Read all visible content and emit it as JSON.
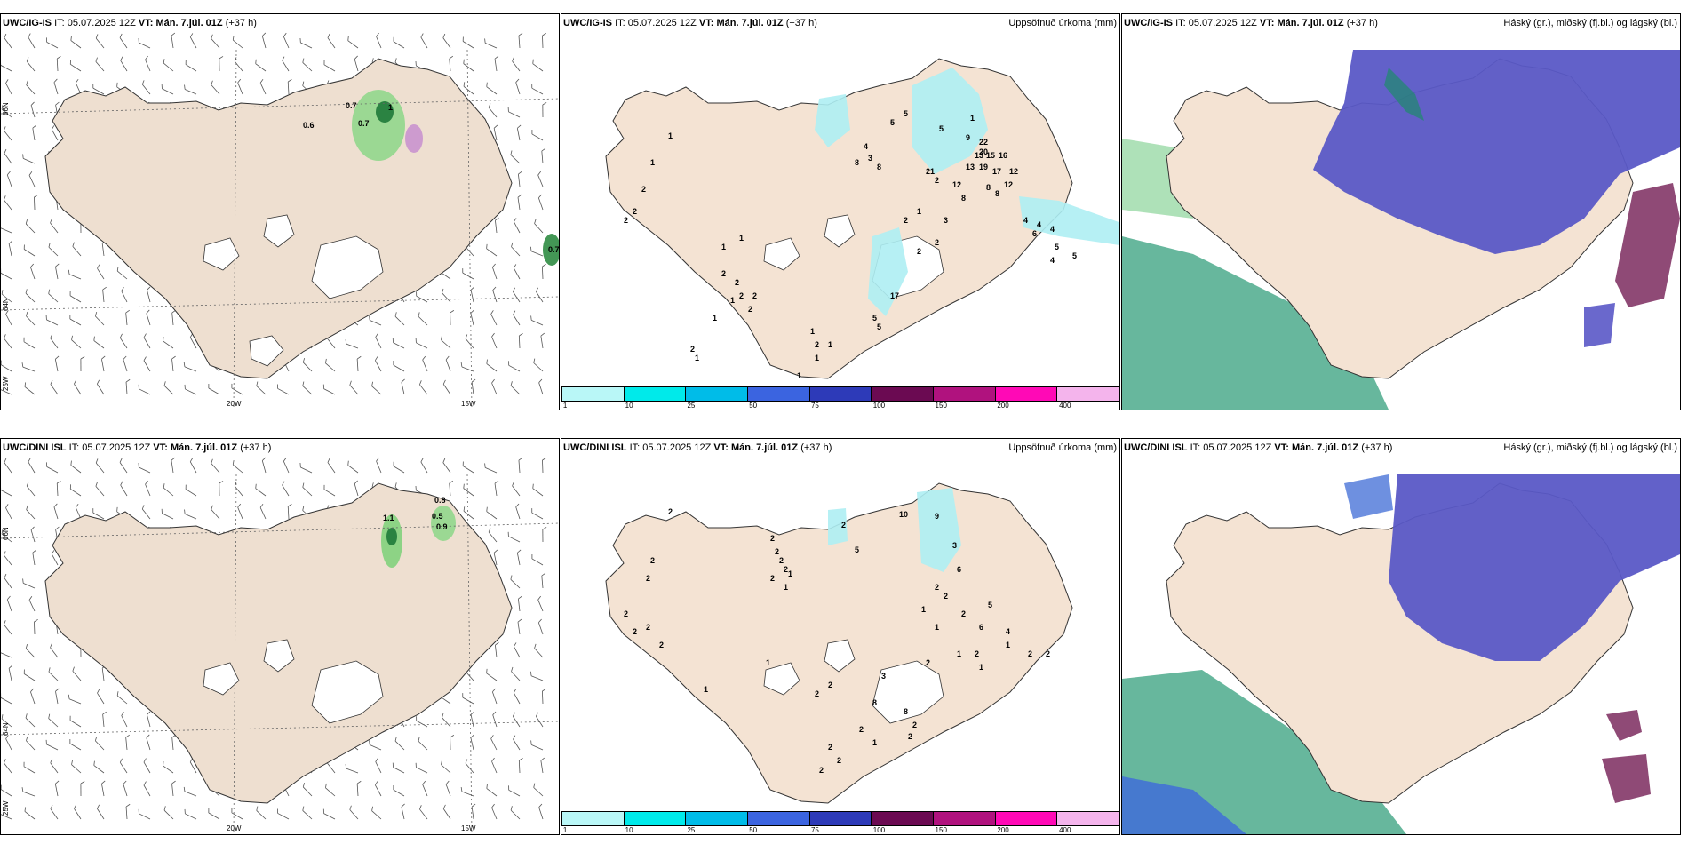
{
  "rows": [
    {
      "model": "UWC/IG-IS",
      "maps": [
        {
          "values": [
            "0.6",
            "0.7",
            "0.7",
            "0.7",
            "1"
          ]
        },
        {
          "values": [
            "1",
            "1",
            "2",
            "2",
            "2",
            "1",
            "1",
            "2",
            "2",
            "2",
            "2",
            "1",
            "2",
            "1",
            "2",
            "1",
            "1",
            "2",
            "5",
            "5",
            "4",
            "3",
            "8",
            "8",
            "5",
            "5",
            "9",
            "22",
            "20",
            "13",
            "15",
            "19",
            "16",
            "13",
            "17",
            "12",
            "12",
            "8",
            "8",
            "8",
            "12",
            "1",
            "1",
            "2",
            "21",
            "2",
            "3",
            "2",
            "2",
            "17",
            "5",
            "1",
            "1",
            "1",
            "4",
            "4",
            "6",
            "4",
            "5",
            "4",
            "5"
          ]
        },
        {}
      ]
    },
    {
      "model": "UWC/DINI ISL",
      "maps": [
        {
          "values": [
            "0.8",
            "1.1",
            "0.5",
            "0.9"
          ]
        },
        {
          "values": [
            "2",
            "2",
            "2",
            "2",
            "2",
            "2",
            "2",
            "1",
            "1",
            "2",
            "2",
            "2",
            "2",
            "2",
            "2",
            "2",
            "1",
            "1",
            "2",
            "5",
            "10",
            "9",
            "3",
            "6",
            "2",
            "1",
            "2",
            "2",
            "1",
            "6",
            "5",
            "4",
            "1",
            "2",
            "2",
            "1",
            "1",
            "3",
            "8",
            "8",
            "2",
            "2",
            "2",
            "1",
            "2",
            "2",
            "2",
            "2",
            "2"
          ]
        },
        {}
      ]
    }
  ],
  "panel_labels": {
    "it_label": "IT:",
    "it_value": "05.07.2025 12Z",
    "vt_label": "VT:",
    "vt_value": "Mán. 7.júl. 01Z",
    "lead": "(+37 h)"
  },
  "precip_title": "Uppsöfnuð úrkoma (mm)",
  "cloud_title": "Háský (gr.), miðský (fj.bl.) og lágský (bl.)",
  "geo_labels": {
    "lat_66": "66N",
    "lat_64": "64N",
    "lon_25": "25W",
    "lon_20": "20W",
    "lon_15": "15W"
  },
  "colorbar": {
    "ticks": [
      "1",
      "10",
      "25",
      "50",
      "75",
      "100",
      "150",
      "200",
      "400"
    ],
    "colors": [
      "#b9f7f7",
      "#00eaea",
      "#00bce8",
      "#3b64e0",
      "#2d3ab8",
      "#6b0a52",
      "#b0127e",
      "#ff09b6",
      "#f4b4ec"
    ]
  },
  "colors": {
    "land": "#f4e3d3",
    "land_wind": "#eedfd0",
    "precip_cyan": "#aeeef3",
    "high_cloud": "#5a58c6",
    "low_cloud": "#4caa8c",
    "mid_cloud": "#4e9a63",
    "green_precip": "#6ccf6c"
  }
}
